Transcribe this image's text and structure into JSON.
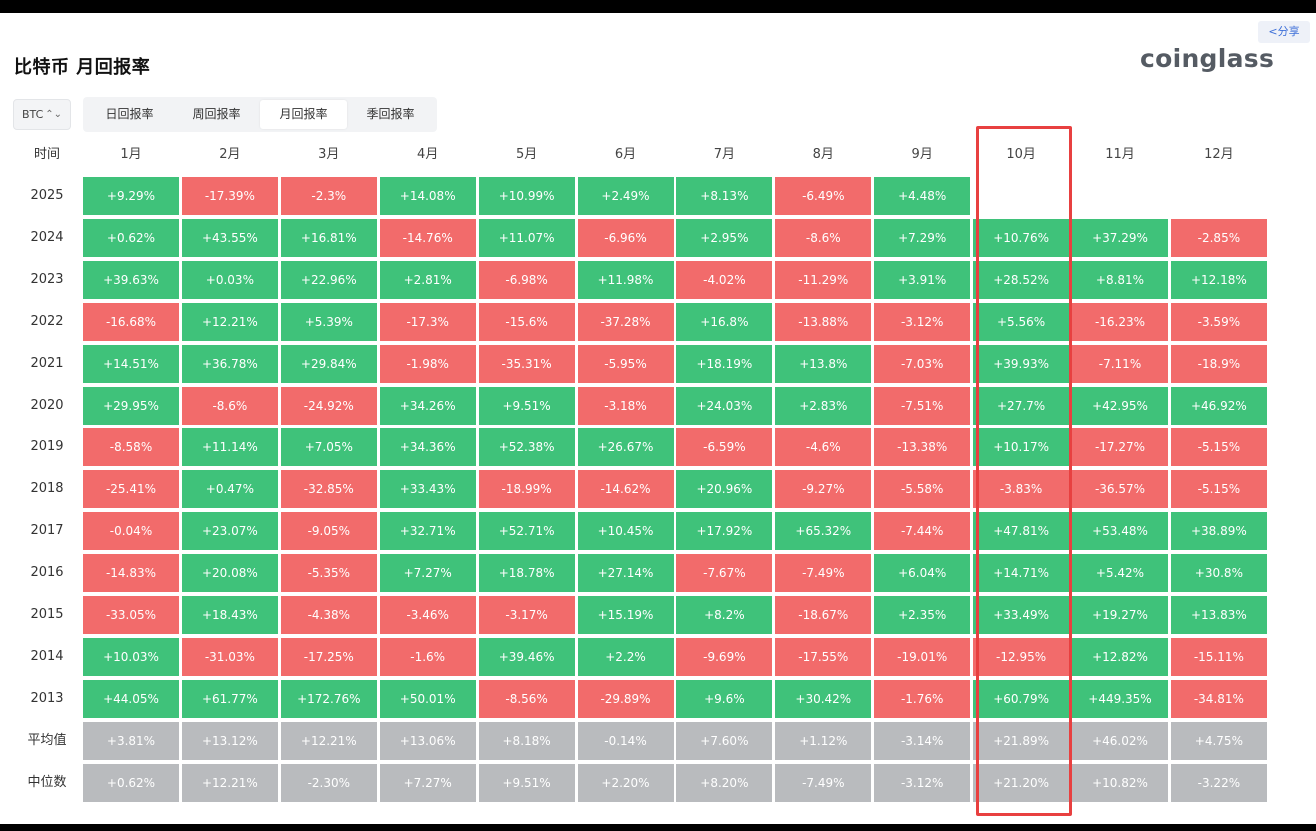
{
  "share_label": "<分享",
  "title": "比特币 月回报率",
  "logo": "coinglass",
  "asset_select": {
    "value": "BTC",
    "chevron": "⌃⌄"
  },
  "tabs": [
    {
      "label": "日回报率",
      "active": false
    },
    {
      "label": "周回报率",
      "active": false
    },
    {
      "label": "月回报率",
      "active": true
    },
    {
      "label": "季回报率",
      "active": false
    }
  ],
  "colors": {
    "positive": "#3fc27a",
    "negative": "#f26b6b",
    "stat": "#b9bbbe",
    "highlight": "#e84040"
  },
  "table": {
    "corner_label": "时间",
    "months": [
      "1月",
      "2月",
      "3月",
      "4月",
      "5月",
      "6月",
      "7月",
      "8月",
      "9月",
      "10月",
      "11月",
      "12月"
    ],
    "rows": [
      {
        "year": "2025",
        "values": [
          "+9.29%",
          "-17.39%",
          "-2.3%",
          "+14.08%",
          "+10.99%",
          "+2.49%",
          "+8.13%",
          "-6.49%",
          "+4.48%",
          "",
          "",
          ""
        ]
      },
      {
        "year": "2024",
        "values": [
          "+0.62%",
          "+43.55%",
          "+16.81%",
          "-14.76%",
          "+11.07%",
          "-6.96%",
          "+2.95%",
          "-8.6%",
          "+7.29%",
          "+10.76%",
          "+37.29%",
          "-2.85%"
        ]
      },
      {
        "year": "2023",
        "values": [
          "+39.63%",
          "+0.03%",
          "+22.96%",
          "+2.81%",
          "-6.98%",
          "+11.98%",
          "-4.02%",
          "-11.29%",
          "+3.91%",
          "+28.52%",
          "+8.81%",
          "+12.18%"
        ]
      },
      {
        "year": "2022",
        "values": [
          "-16.68%",
          "+12.21%",
          "+5.39%",
          "-17.3%",
          "-15.6%",
          "-37.28%",
          "+16.8%",
          "-13.88%",
          "-3.12%",
          "+5.56%",
          "-16.23%",
          "-3.59%"
        ]
      },
      {
        "year": "2021",
        "values": [
          "+14.51%",
          "+36.78%",
          "+29.84%",
          "-1.98%",
          "-35.31%",
          "-5.95%",
          "+18.19%",
          "+13.8%",
          "-7.03%",
          "+39.93%",
          "-7.11%",
          "-18.9%"
        ]
      },
      {
        "year": "2020",
        "values": [
          "+29.95%",
          "-8.6%",
          "-24.92%",
          "+34.26%",
          "+9.51%",
          "-3.18%",
          "+24.03%",
          "+2.83%",
          "-7.51%",
          "+27.7%",
          "+42.95%",
          "+46.92%"
        ]
      },
      {
        "year": "2019",
        "values": [
          "-8.58%",
          "+11.14%",
          "+7.05%",
          "+34.36%",
          "+52.38%",
          "+26.67%",
          "-6.59%",
          "-4.6%",
          "-13.38%",
          "+10.17%",
          "-17.27%",
          "-5.15%"
        ]
      },
      {
        "year": "2018",
        "values": [
          "-25.41%",
          "+0.47%",
          "-32.85%",
          "+33.43%",
          "-18.99%",
          "-14.62%",
          "+20.96%",
          "-9.27%",
          "-5.58%",
          "-3.83%",
          "-36.57%",
          "-5.15%"
        ]
      },
      {
        "year": "2017",
        "values": [
          "-0.04%",
          "+23.07%",
          "-9.05%",
          "+32.71%",
          "+52.71%",
          "+10.45%",
          "+17.92%",
          "+65.32%",
          "-7.44%",
          "+47.81%",
          "+53.48%",
          "+38.89%"
        ]
      },
      {
        "year": "2016",
        "values": [
          "-14.83%",
          "+20.08%",
          "-5.35%",
          "+7.27%",
          "+18.78%",
          "+27.14%",
          "-7.67%",
          "-7.49%",
          "+6.04%",
          "+14.71%",
          "+5.42%",
          "+30.8%"
        ]
      },
      {
        "year": "2015",
        "values": [
          "-33.05%",
          "+18.43%",
          "-4.38%",
          "-3.46%",
          "-3.17%",
          "+15.19%",
          "+8.2%",
          "-18.67%",
          "+2.35%",
          "+33.49%",
          "+19.27%",
          "+13.83%"
        ]
      },
      {
        "year": "2014",
        "values": [
          "+10.03%",
          "-31.03%",
          "-17.25%",
          "-1.6%",
          "+39.46%",
          "+2.2%",
          "-9.69%",
          "-17.55%",
          "-19.01%",
          "-12.95%",
          "+12.82%",
          "-15.11%"
        ]
      },
      {
        "year": "2013",
        "values": [
          "+44.05%",
          "+61.77%",
          "+172.76%",
          "+50.01%",
          "-8.56%",
          "-29.89%",
          "+9.6%",
          "+30.42%",
          "-1.76%",
          "+60.79%",
          "+449.35%",
          "-34.81%"
        ]
      }
    ],
    "stats": [
      {
        "label": "平均值",
        "values": [
          "+3.81%",
          "+13.12%",
          "+12.21%",
          "+13.06%",
          "+8.18%",
          "-0.14%",
          "+7.60%",
          "+1.12%",
          "-3.14%",
          "+21.89%",
          "+46.02%",
          "+4.75%"
        ]
      },
      {
        "label": "中位数",
        "values": [
          "+0.62%",
          "+12.21%",
          "-2.30%",
          "+7.27%",
          "+9.51%",
          "+2.20%",
          "+8.20%",
          "-7.49%",
          "-3.12%",
          "+21.20%",
          "+10.82%",
          "-3.22%"
        ]
      }
    ]
  }
}
